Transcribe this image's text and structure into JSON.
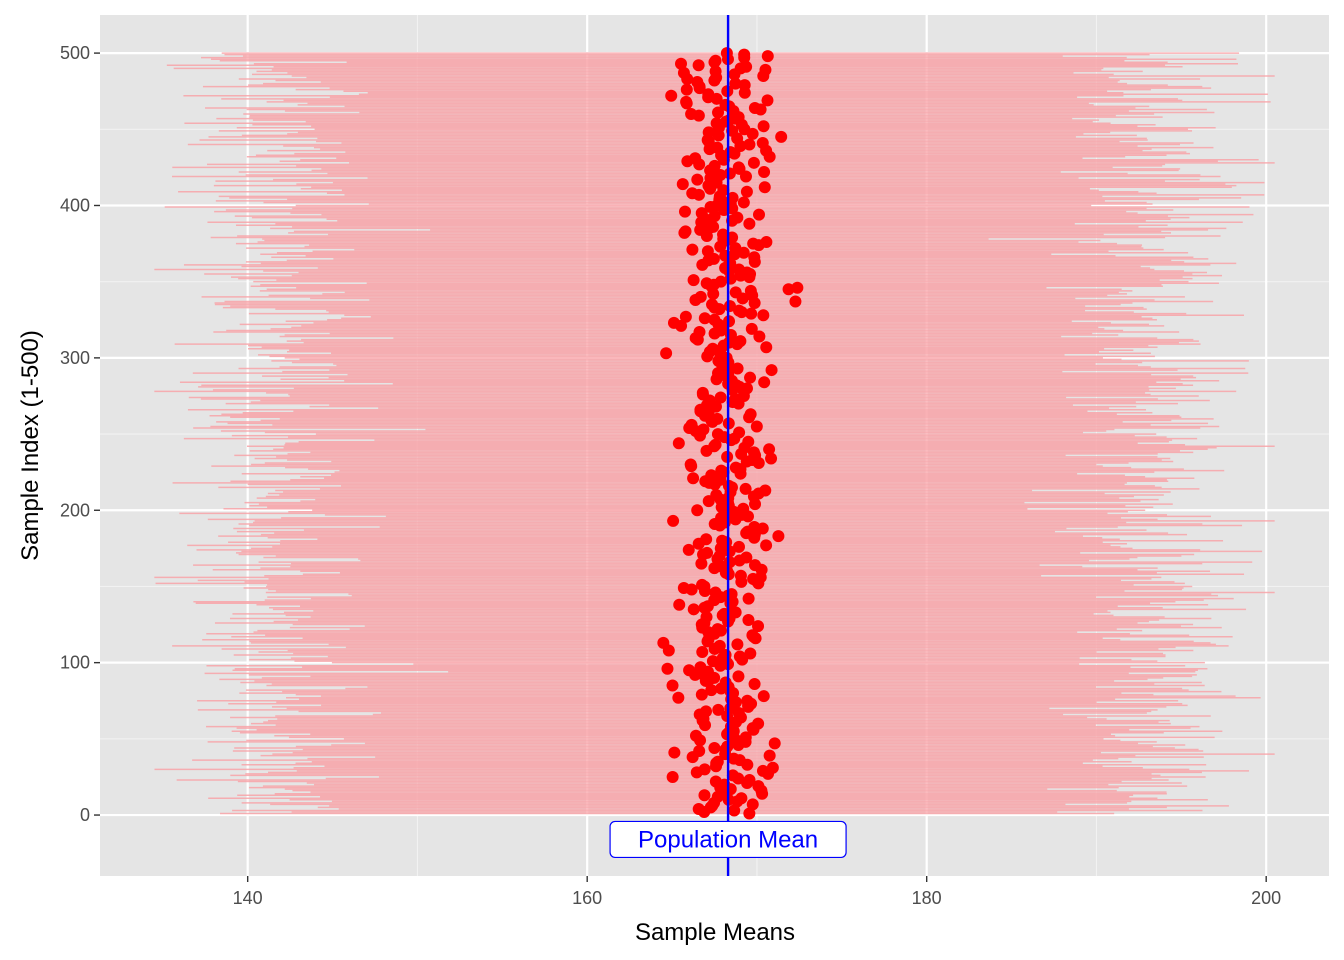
{
  "chart_data": {
    "type": "scatter",
    "title": "",
    "xlabel": "Sample Means",
    "ylabel": "Sample Index (1-500)",
    "xlim": [
      131.3,
      203.7
    ],
    "ylim": [
      -40,
      525
    ],
    "x_ticks": [
      140,
      160,
      180,
      200
    ],
    "y_ticks": [
      0,
      100,
      200,
      300,
      400,
      500
    ],
    "grid": true,
    "legend": "none",
    "colors": {
      "panel": "#e5e5e5",
      "grid": "#ffffff",
      "interval": "#f8a3a8",
      "point": "#ff0000",
      "mean_line": "#0000ff"
    },
    "population_mean": 168.3,
    "annotation": {
      "label": "Population Mean",
      "x": 168.3,
      "y": -16
    },
    "series": [
      {
        "kind": "interval",
        "description": "500 horizontal confidence-interval segments, one per sample index",
        "sample_index_range": [
          1,
          500
        ],
        "lower_bound_range": [
          134.5,
          154.0
        ],
        "upper_bound_range": [
          182.0,
          200.5
        ]
      },
      {
        "kind": "point",
        "description": "500 sample means, one per sample index",
        "sample_index_range": [
          1,
          500
        ],
        "mean_range": [
          163.0,
          173.4
        ],
        "center": 168.3
      }
    ]
  }
}
